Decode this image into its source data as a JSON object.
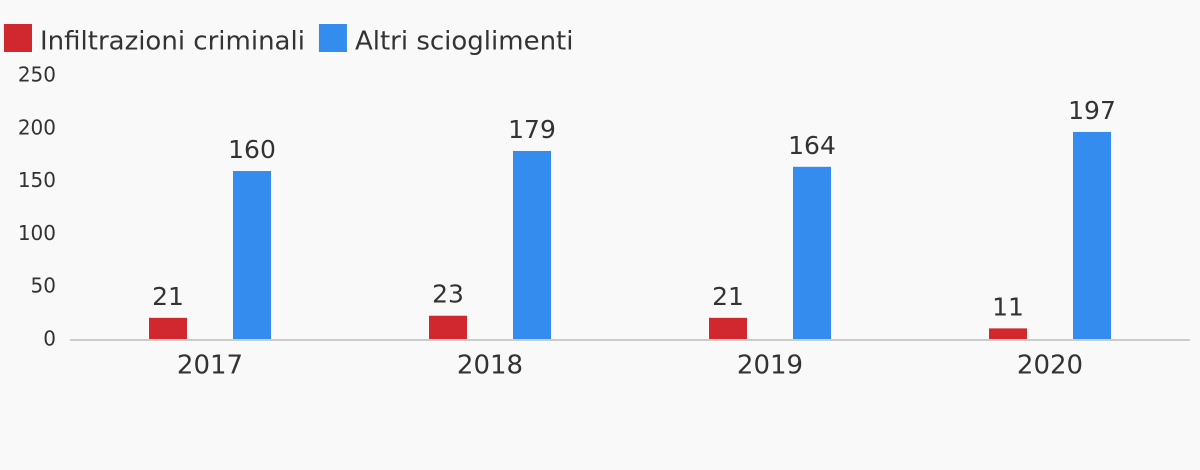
{
  "chart_data": {
    "type": "bar",
    "categories": [
      "2017",
      "2018",
      "2019",
      "2020"
    ],
    "series": [
      {
        "name": "Infiltrazioni criminali",
        "color": "#d0282e",
        "values": [
          21,
          23,
          21,
          11
        ]
      },
      {
        "name": "Altri scioglimenti",
        "color": "#338cee",
        "values": [
          160,
          179,
          164,
          197
        ]
      }
    ],
    "ylim": [
      0,
      250
    ],
    "yticks": [
      0,
      50,
      100,
      150,
      200,
      250
    ],
    "grid": false,
    "legend": "top-left"
  }
}
